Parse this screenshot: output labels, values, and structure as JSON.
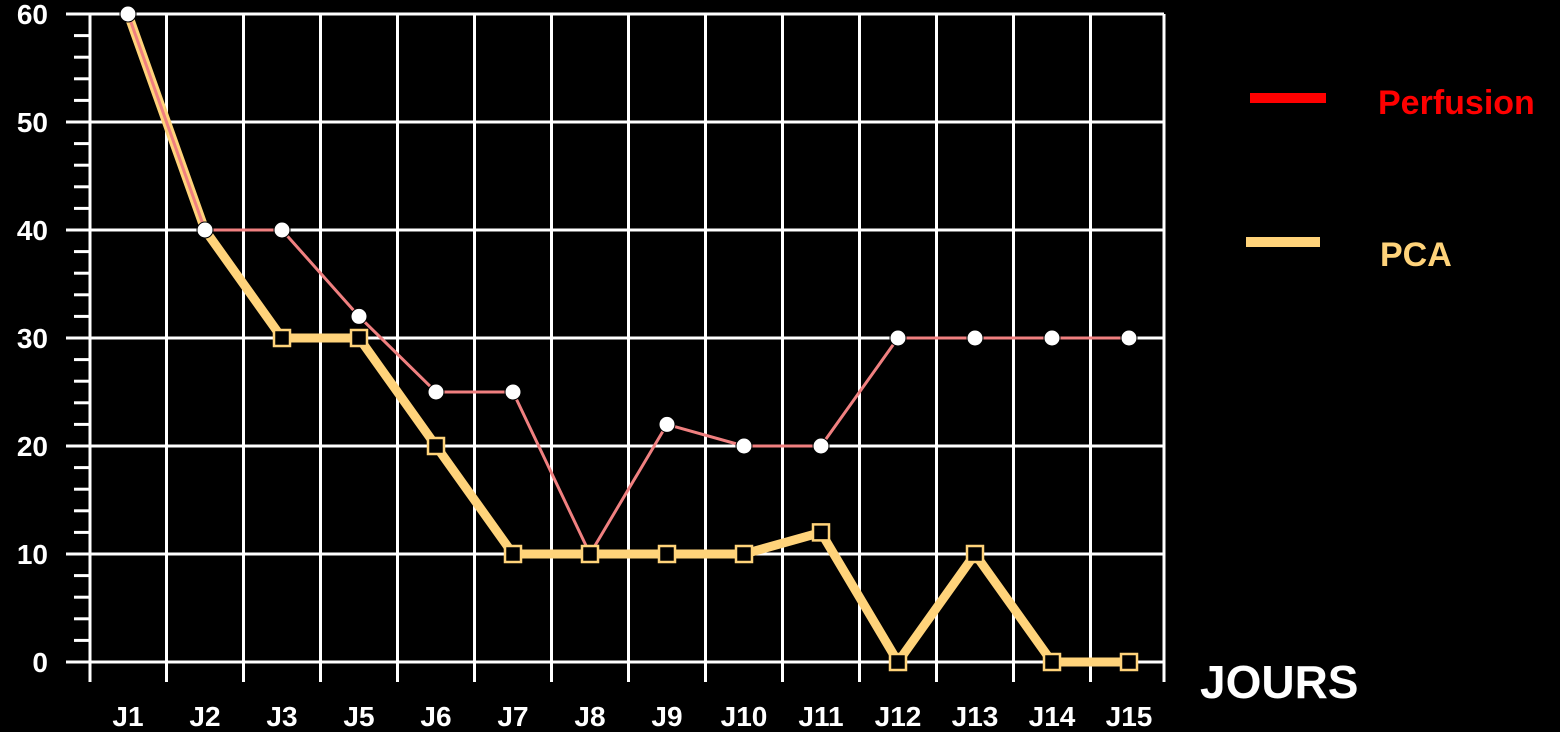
{
  "chart_data": {
    "type": "line",
    "categories": [
      "J1",
      "J2",
      "J3",
      "J5",
      "J6",
      "J7",
      "J8",
      "J9",
      "J10",
      "J11",
      "J12",
      "J13",
      "J14",
      "J15"
    ],
    "xlabel": "JOURS",
    "ylabel": "",
    "ylim": [
      0,
      60
    ],
    "yticks": [
      0,
      10,
      20,
      30,
      40,
      50,
      60
    ],
    "grid": true,
    "legend_position": "right",
    "series": [
      {
        "name": "Perfusion",
        "color": "#ff0000",
        "line_color": "#f08080",
        "marker": "circle",
        "values": [
          60,
          40,
          40,
          32,
          25,
          25,
          10,
          22,
          20,
          20,
          30,
          30,
          30,
          30
        ]
      },
      {
        "name": "PCA",
        "color": "#ffd37a",
        "line_color": "#ffd37a",
        "marker": "square",
        "values": [
          60,
          40,
          30,
          30,
          20,
          10,
          10,
          10,
          10,
          12,
          0,
          10,
          0,
          0
        ]
      }
    ]
  }
}
